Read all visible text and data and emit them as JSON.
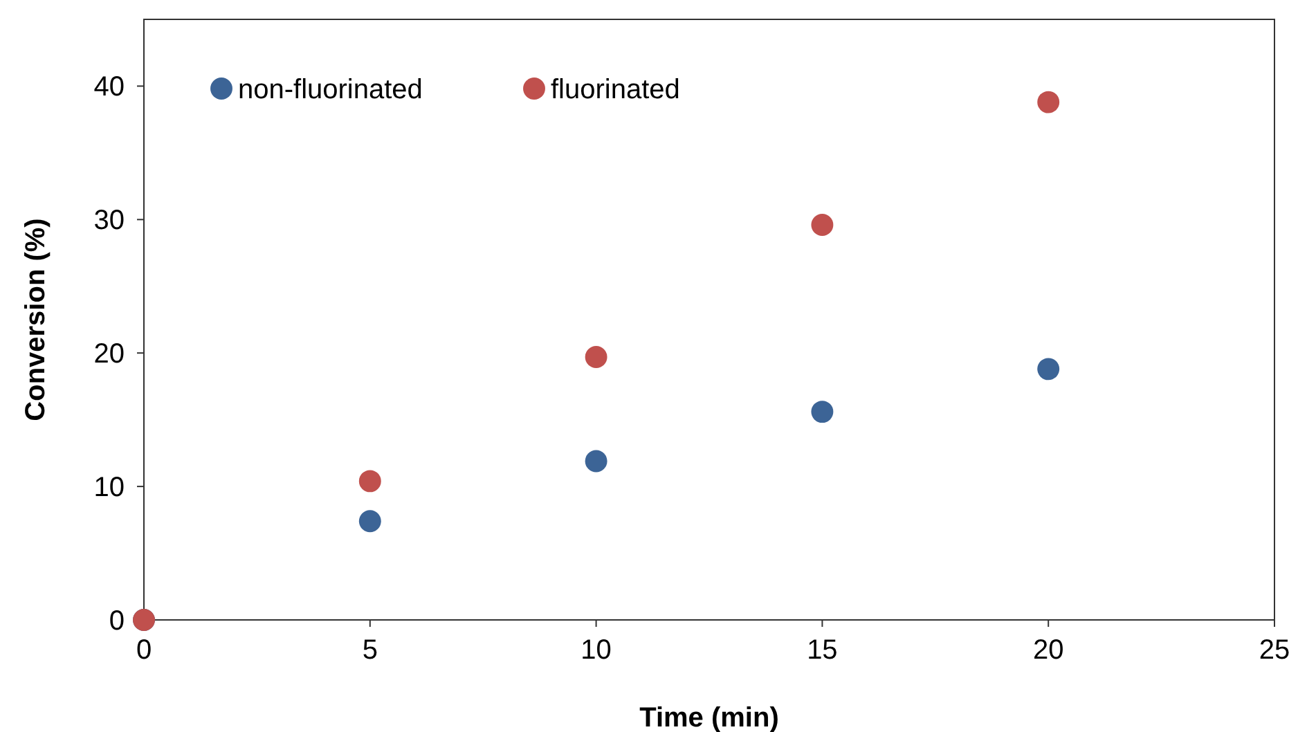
{
  "chart_data": {
    "type": "scatter",
    "xlabel": "Time (min)",
    "ylabel": "Conversion (%)",
    "xlim": [
      0,
      25
    ],
    "xticks": [
      0,
      5,
      10,
      15,
      20,
      25
    ],
    "ylim": [
      0,
      45
    ],
    "yticks": [
      0,
      10,
      20,
      30,
      40
    ],
    "grid": false,
    "legend": "top left",
    "marker": "circle",
    "series": [
      {
        "name": "non-fluorinated",
        "color": "#3c6496",
        "x": [
          0,
          5,
          10,
          15,
          20
        ],
        "values": [
          0,
          7.4,
          11.9,
          15.6,
          18.8
        ]
      },
      {
        "name": "fluorinated",
        "color": "#c0504d",
        "x": [
          0,
          5,
          10,
          15,
          20
        ],
        "values": [
          0,
          10.4,
          19.7,
          29.6,
          38.8
        ]
      }
    ]
  }
}
